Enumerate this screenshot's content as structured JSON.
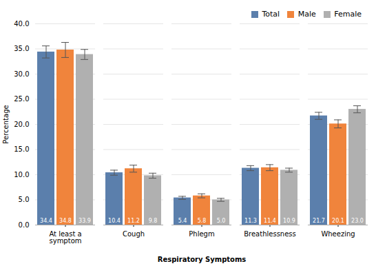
{
  "chart_data": {
    "type": "bar",
    "categories": [
      "At least a\nsymptom",
      "Cough",
      "Phlegm",
      "Breathlessness",
      "Wheezing"
    ],
    "series": [
      {
        "name": "Total",
        "color": "#5b7fac",
        "values": [
          34.4,
          10.4,
          5.4,
          11.3,
          21.7
        ],
        "errors": [
          1.2,
          0.5,
          0.3,
          0.5,
          0.7
        ],
        "value_labels": [
          "34.4",
          "10.4",
          "5.4",
          "11.3",
          "21.7"
        ]
      },
      {
        "name": "Male",
        "color": "#f0843c",
        "values": [
          34.8,
          11.2,
          5.8,
          11.4,
          20.1
        ],
        "errors": [
          1.5,
          0.7,
          0.4,
          0.6,
          0.8
        ],
        "value_labels": [
          "34.8",
          "11.2",
          "5.8",
          "11.4",
          "20.1"
        ]
      },
      {
        "name": "Female",
        "color": "#b0b0b0",
        "values": [
          33.9,
          9.8,
          5.0,
          10.9,
          23.0
        ],
        "errors": [
          1.0,
          0.5,
          0.3,
          0.4,
          0.7
        ],
        "value_labels": [
          "33.9",
          "9.8",
          "5.0",
          "10.9",
          "23.0"
        ]
      }
    ],
    "xlabel": "Respiratory Symptoms",
    "ylabel": "Percentage",
    "ylim": [
      0,
      40
    ],
    "yticks": [
      {
        "value": 0,
        "label": "0.0"
      },
      {
        "value": 5,
        "label": "5.0"
      },
      {
        "value": 10,
        "label": "10.0"
      },
      {
        "value": 15,
        "label": "15.0"
      },
      {
        "value": 20,
        "label": "20.0"
      },
      {
        "value": 25,
        "label": "25.0"
      },
      {
        "value": 30,
        "label": "30.0"
      },
      {
        "value": 35,
        "label": "35.0"
      },
      {
        "value": 40,
        "label": "40.0"
      }
    ],
    "grid": true,
    "legend": "upper right",
    "data_labels": true
  }
}
